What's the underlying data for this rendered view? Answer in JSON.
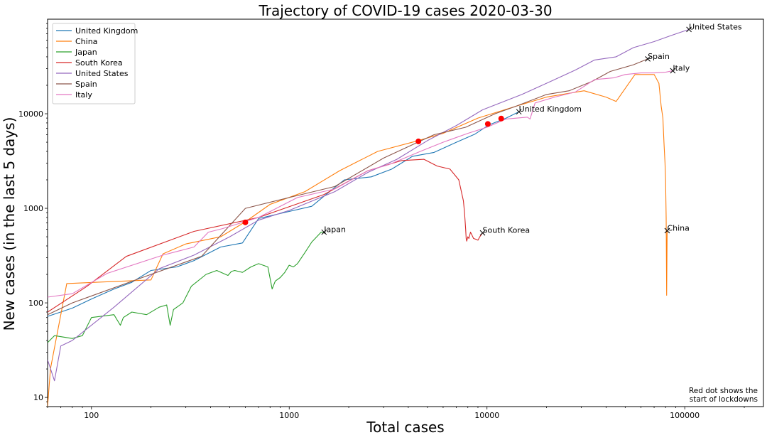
{
  "chart_data": {
    "type": "line",
    "title": "Trajectory of COVID-19 cases 2020-03-30",
    "xlabel": "Total cases",
    "ylabel": "New cases (in the last 5 days)",
    "x_scale": "log",
    "y_scale": "log",
    "xlim": [
      60,
      250000
    ],
    "ylim": [
      8,
      100000
    ],
    "x_ticks": [
      {
        "value": 100,
        "label": "100"
      },
      {
        "value": 1000,
        "label": "1000"
      },
      {
        "value": 10000,
        "label": "10000"
      },
      {
        "value": 100000,
        "label": "100000"
      }
    ],
    "y_ticks": [
      {
        "value": 10,
        "label": "10"
      },
      {
        "value": 100,
        "label": "100"
      },
      {
        "value": 1000,
        "label": "1000"
      },
      {
        "value": 10000,
        "label": "10000"
      }
    ],
    "grid": false,
    "legend_position": "top-left",
    "annotation": [
      "Red dot shows the",
      "start of lockdowns"
    ],
    "lockdown_marker_color": "#ff0000",
    "series": [
      {
        "name": "United Kingdom",
        "color": "#1f77b4",
        "x": [
          60,
          65,
          80,
          100,
          130,
          160,
          200,
          270,
          330,
          450,
          580,
          700,
          900,
          1300,
          1600,
          1900,
          2600,
          3300,
          4200,
          5400,
          7000,
          8700,
          10200,
          12500,
          14500
        ],
        "y": [
          72,
          76,
          88,
          110,
          140,
          165,
          220,
          240,
          280,
          390,
          430,
          780,
          880,
          1050,
          1500,
          2000,
          2150,
          2600,
          3550,
          3900,
          5000,
          6100,
          7600,
          9000,
          10500
        ],
        "end_label": "United Kingdom"
      },
      {
        "name": "China",
        "color": "#ff7f0e",
        "x": [
          60,
          62,
          75,
          200,
          230,
          300,
          450,
          600,
          800,
          1200,
          1800,
          2800,
          4500,
          6000,
          9000,
          14000,
          20000,
          31000,
          40000,
          45000,
          56000,
          70000,
          74000,
          76000,
          77500,
          78500,
          79500,
          80000,
          80500,
          81000,
          81500
        ],
        "y": [
          8,
          20,
          160,
          175,
          330,
          420,
          500,
          720,
          1100,
          1500,
          2500,
          4000,
          5200,
          6200,
          9000,
          12000,
          15000,
          17500,
          15000,
          13500,
          26000,
          26000,
          21000,
          12000,
          9000,
          5000,
          3000,
          2000,
          800,
          120,
          580
        ],
        "end_label": "China"
      },
      {
        "name": "Japan",
        "color": "#2ca02c",
        "x": [
          60,
          65,
          80,
          90,
          100,
          130,
          140,
          145,
          160,
          190,
          220,
          240,
          250,
          260,
          290,
          320,
          380,
          430,
          490,
          510,
          530,
          580,
          640,
          700,
          780,
          820,
          850,
          900,
          950,
          1000,
          1050,
          1100,
          1200,
          1300,
          1450,
          1500
        ],
        "y": [
          38,
          45,
          42,
          45,
          70,
          75,
          58,
          70,
          80,
          75,
          90,
          95,
          58,
          85,
          100,
          150,
          200,
          220,
          195,
          215,
          220,
          210,
          240,
          260,
          240,
          140,
          170,
          185,
          210,
          250,
          240,
          260,
          340,
          440,
          560,
          560
        ],
        "end_label": "Japan"
      },
      {
        "name": "South Korea",
        "color": "#d62728",
        "x": [
          60,
          95,
          150,
          330,
          700,
          1500,
          2500,
          3700,
          4800,
          5600,
          6500,
          7200,
          7600,
          7700,
          7800,
          7850,
          7900,
          8000,
          8100,
          8250,
          8400,
          8550,
          8800,
          9000,
          9200,
          9500
        ],
        "y": [
          80,
          150,
          310,
          570,
          800,
          1400,
          2500,
          3200,
          3300,
          2800,
          2600,
          2000,
          1200,
          900,
          600,
          480,
          450,
          500,
          480,
          560,
          520,
          480,
          470,
          460,
          500,
          550
        ],
        "end_label": "South Korea"
      },
      {
        "name": "United States",
        "color": "#9467bd",
        "x": [
          60,
          65,
          70,
          80,
          130,
          220,
          330,
          500,
          700,
          1000,
          1700,
          2500,
          3500,
          5000,
          7000,
          9500,
          15000,
          21000,
          28000,
          35000,
          45000,
          55000,
          70000,
          85000,
          105000
        ],
        "y": [
          25,
          15,
          35,
          40,
          90,
          230,
          320,
          500,
          750,
          950,
          1500,
          2400,
          3300,
          5200,
          7500,
          11000,
          16000,
          22000,
          29000,
          37000,
          40000,
          50000,
          58000,
          67000,
          78000
        ],
        "end_label": "United States"
      },
      {
        "name": "Spain",
        "color": "#8c564b",
        "x": [
          60,
          80,
          200,
          360,
          600,
          1000,
          1700,
          3000,
          5400,
          7800,
          11000,
          14000,
          20000,
          26000,
          34000,
          42000,
          55000,
          65000
        ],
        "y": [
          75,
          100,
          200,
          310,
          1000,
          1300,
          1700,
          3400,
          6000,
          7200,
          10000,
          12000,
          16000,
          17500,
          22000,
          28000,
          33000,
          38000
        ],
        "end_label": "Spain"
      },
      {
        "name": "Italy",
        "color": "#e377c2",
        "x": [
          60,
          80,
          120,
          230,
          330,
          390,
          460,
          700,
          1100,
          1700,
          2500,
          3200,
          4600,
          6000,
          8000,
          10000,
          12500,
          16000,
          16500,
          17500,
          22000,
          28000,
          35000,
          44000,
          50000,
          60000,
          70000,
          80000,
          87000
        ],
        "y": [
          115,
          125,
          205,
          320,
          390,
          560,
          610,
          800,
          1300,
          1600,
          2500,
          2900,
          4000,
          5000,
          6200,
          7200,
          8800,
          9200,
          8800,
          13000,
          15000,
          17000,
          23000,
          24000,
          26000,
          27000,
          27000,
          27500,
          28500
        ],
        "end_label": "Italy"
      }
    ],
    "lockdown_points": [
      {
        "series": "South Korea",
        "x": 600,
        "y": 710
      },
      {
        "series": "China",
        "x": 4500,
        "y": 5100
      },
      {
        "series": "Italy",
        "x": 10100,
        "y": 7800
      },
      {
        "series": "Spain",
        "x": 11800,
        "y": 8900
      }
    ]
  }
}
